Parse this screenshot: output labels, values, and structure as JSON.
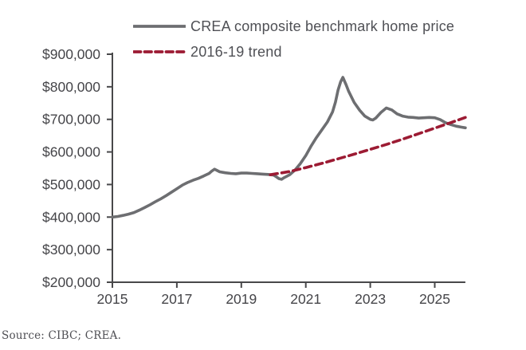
{
  "source_note": "Source: CIBC; CREA.",
  "colors": {
    "crea_line": "#6d6e71",
    "trend_line": "#9c1b33",
    "axis": "#48484a",
    "tick_label": "#454549"
  },
  "chart_data": {
    "type": "line",
    "title": "",
    "xlabel": "",
    "ylabel": "",
    "xlim": [
      2015,
      2025.95
    ],
    "ylim": [
      200000,
      900000
    ],
    "grid": false,
    "legend_position": "top",
    "x_ticks": [
      2015,
      2017,
      2019,
      2021,
      2023,
      2025
    ],
    "x_tick_labels": [
      "2015",
      "2017",
      "2019",
      "2021",
      "2023",
      "2025"
    ],
    "y_ticks": [
      200000,
      300000,
      400000,
      500000,
      600000,
      700000,
      800000,
      900000
    ],
    "y_tick_labels": [
      "$200,000",
      "$300,000",
      "$400,000",
      "$500,000",
      "$600,000",
      "$700,000",
      "$800,000",
      "$900,000"
    ],
    "series": [
      {
        "name": "CREA composite benchmark home price",
        "style": "solid",
        "color": "#6d6e71",
        "points": [
          [
            2015.0,
            400000
          ],
          [
            2015.17,
            402000
          ],
          [
            2015.33,
            405000
          ],
          [
            2015.5,
            409000
          ],
          [
            2015.67,
            414000
          ],
          [
            2015.83,
            421000
          ],
          [
            2016.0,
            429000
          ],
          [
            2016.17,
            438000
          ],
          [
            2016.33,
            447000
          ],
          [
            2016.5,
            456000
          ],
          [
            2016.67,
            466000
          ],
          [
            2016.83,
            476000
          ],
          [
            2017.0,
            487000
          ],
          [
            2017.17,
            498000
          ],
          [
            2017.33,
            506000
          ],
          [
            2017.5,
            513000
          ],
          [
            2017.67,
            519000
          ],
          [
            2017.83,
            526000
          ],
          [
            2018.0,
            534000
          ],
          [
            2018.08,
            541000
          ],
          [
            2018.17,
            547000
          ],
          [
            2018.25,
            543000
          ],
          [
            2018.33,
            539000
          ],
          [
            2018.5,
            536000
          ],
          [
            2018.67,
            534000
          ],
          [
            2018.83,
            533000
          ],
          [
            2019.0,
            535000
          ],
          [
            2019.17,
            535000
          ],
          [
            2019.33,
            534000
          ],
          [
            2019.5,
            533000
          ],
          [
            2019.67,
            532000
          ],
          [
            2019.83,
            531000
          ],
          [
            2020.0,
            529000
          ],
          [
            2020.08,
            524000
          ],
          [
            2020.17,
            518000
          ],
          [
            2020.25,
            516000
          ],
          [
            2020.33,
            521000
          ],
          [
            2020.5,
            530000
          ],
          [
            2020.67,
            545000
          ],
          [
            2020.83,
            564000
          ],
          [
            2021.0,
            589000
          ],
          [
            2021.17,
            619000
          ],
          [
            2021.33,
            644000
          ],
          [
            2021.5,
            668000
          ],
          [
            2021.67,
            692000
          ],
          [
            2021.83,
            723000
          ],
          [
            2021.92,
            753000
          ],
          [
            2022.0,
            790000
          ],
          [
            2022.08,
            815000
          ],
          [
            2022.15,
            829000
          ],
          [
            2022.25,
            806000
          ],
          [
            2022.33,
            786000
          ],
          [
            2022.5,
            752000
          ],
          [
            2022.67,
            728000
          ],
          [
            2022.83,
            710000
          ],
          [
            2023.0,
            700000
          ],
          [
            2023.08,
            698000
          ],
          [
            2023.17,
            704000
          ],
          [
            2023.33,
            721000
          ],
          [
            2023.5,
            735000
          ],
          [
            2023.67,
            729000
          ],
          [
            2023.83,
            717000
          ],
          [
            2024.0,
            710000
          ],
          [
            2024.17,
            707000
          ],
          [
            2024.33,
            706000
          ],
          [
            2024.5,
            704000
          ],
          [
            2024.67,
            705000
          ],
          [
            2024.83,
            706000
          ],
          [
            2025.0,
            705000
          ],
          [
            2025.17,
            699000
          ],
          [
            2025.33,
            690000
          ],
          [
            2025.5,
            684000
          ],
          [
            2025.67,
            679000
          ],
          [
            2025.83,
            676000
          ],
          [
            2025.95,
            674000
          ]
        ]
      },
      {
        "name": "2016-19 trend",
        "style": "dashed",
        "color": "#9c1b33",
        "points": [
          [
            2019.9,
            530000
          ],
          [
            2020.5,
            540000
          ],
          [
            2021.0,
            552000
          ],
          [
            2021.5,
            565000
          ],
          [
            2022.0,
            579000
          ],
          [
            2022.5,
            593000
          ],
          [
            2023.0,
            608000
          ],
          [
            2023.5,
            623000
          ],
          [
            2024.0,
            639000
          ],
          [
            2024.5,
            656000
          ],
          [
            2025.0,
            673000
          ],
          [
            2025.5,
            690000
          ],
          [
            2025.95,
            706000
          ]
        ]
      }
    ]
  }
}
